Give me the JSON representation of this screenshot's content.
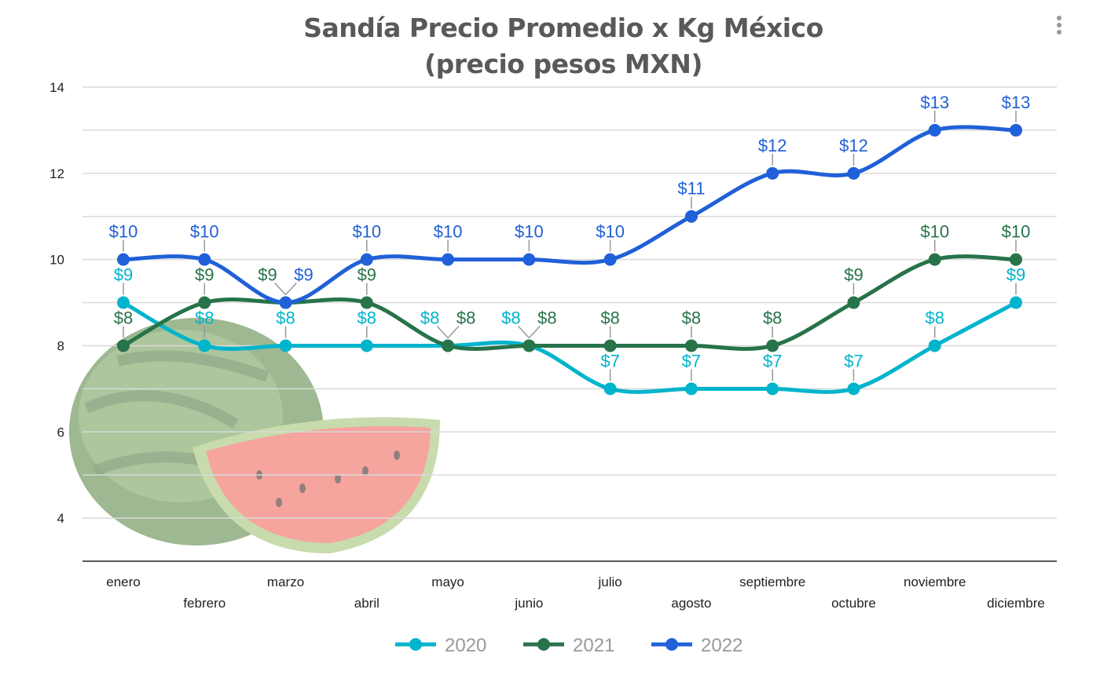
{
  "chart_data": {
    "type": "line",
    "title": "Sandía Precio Promedio x Kg México",
    "subtitle": "(precio pesos MXN)",
    "categories": [
      "enero",
      "febrero",
      "marzo",
      "abril",
      "mayo",
      "junio",
      "julio",
      "agosto",
      "septiembre",
      "octubre",
      "noviembre",
      "diciembre"
    ],
    "series": [
      {
        "name": "2020",
        "color": "#00b4cc",
        "values": [
          9,
          8,
          8,
          8,
          8,
          8,
          7,
          7,
          7,
          7,
          8,
          9
        ]
      },
      {
        "name": "2021",
        "color": "#27734a",
        "values": [
          8,
          9,
          9,
          9,
          8,
          8,
          8,
          8,
          8,
          9,
          10,
          10
        ]
      },
      {
        "name": "2022",
        "color": "#2060d8",
        "values": [
          10,
          10,
          9,
          10,
          10,
          10,
          10,
          11,
          12,
          12,
          13,
          13
        ]
      }
    ],
    "data_label_prefix": "$",
    "yticks": [
      4,
      6,
      8,
      10,
      12,
      14
    ],
    "ylim": [
      3,
      14
    ],
    "grid": true,
    "smooth": true,
    "legend": "bottom",
    "background_image": "watermelon"
  },
  "menu_icon": "more-vertical-icon"
}
